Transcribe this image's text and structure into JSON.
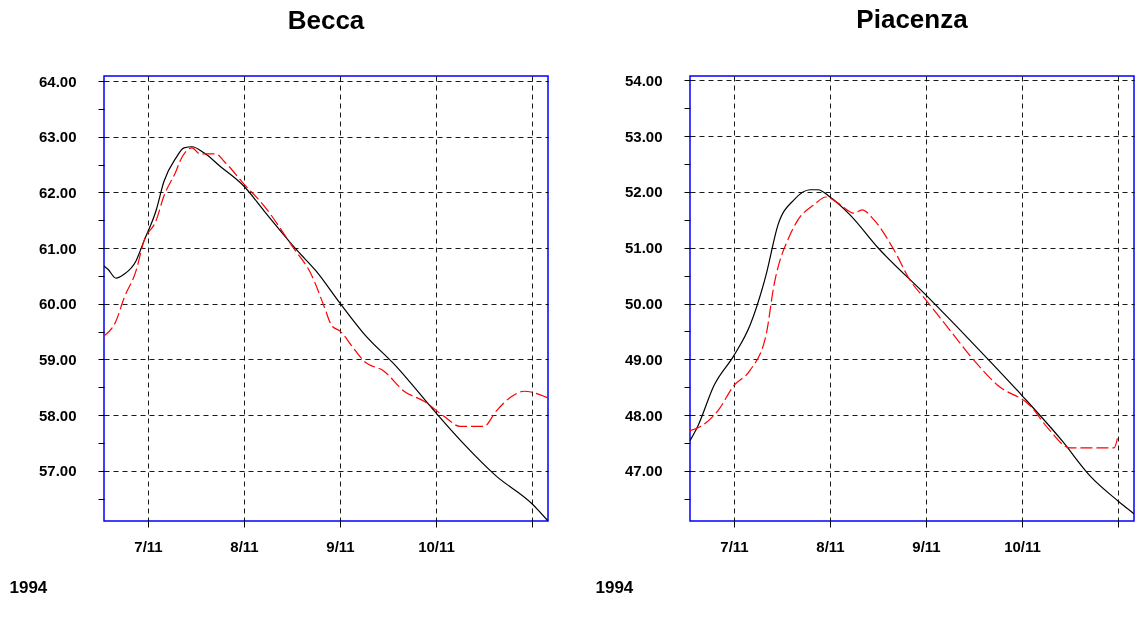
{
  "chart_data": [
    {
      "type": "line",
      "title": "Becca",
      "xlabel": "1994",
      "xlim": [
        "1994-11-06T13:00",
        "1994-11-11T04:00"
      ],
      "ylim": [
        56.1,
        64.09
      ],
      "xticks": [
        {
          "value": "1994-11-07",
          "label": "7/11"
        },
        {
          "value": "1994-11-08",
          "label": "8/11"
        },
        {
          "value": "1994-11-09",
          "label": "9/11"
        },
        {
          "value": "1994-11-10",
          "label": "10/11"
        },
        {
          "value": "1994-11-11",
          "label": null
        }
      ],
      "yticks": [
        {
          "value": 56.5,
          "label": null
        },
        {
          "value": 57,
          "label": "57.00"
        },
        {
          "value": 57.5,
          "label": null
        },
        {
          "value": 58,
          "label": "58.00"
        },
        {
          "value": 58.5,
          "label": null
        },
        {
          "value": 59,
          "label": "59.00"
        },
        {
          "value": 59.5,
          "label": null
        },
        {
          "value": 60,
          "label": "60.00"
        },
        {
          "value": 60.5,
          "label": null
        },
        {
          "value": 61,
          "label": "61.00"
        },
        {
          "value": 61.5,
          "label": null
        },
        {
          "value": 62,
          "label": "62.00"
        },
        {
          "value": 62.5,
          "label": null
        },
        {
          "value": 63,
          "label": "63.00"
        },
        {
          "value": 63.5,
          "label": null
        },
        {
          "value": 64,
          "label": "64.00"
        }
      ],
      "grid": true,
      "series": [
        {
          "color": "#000000",
          "line_style": "solid",
          "x": [
            "1994-11-06T13:00",
            "1994-11-06T14:00",
            "1994-11-06T16:00",
            "1994-11-06T18:00",
            "1994-11-06T21:00",
            "1994-11-06T23:00",
            "1994-11-07T02:00",
            "1994-11-07T04:00",
            "1994-11-07T07:00",
            "1994-11-07T09:00",
            "1994-11-07T11:00",
            "1994-11-07T14:00",
            "1994-11-07T18:00",
            "1994-11-08T00:00",
            "1994-11-08T05:00",
            "1994-11-08T13:00",
            "1994-11-08T18:00",
            "1994-11-09T00:00",
            "1994-11-09T06:00",
            "1994-11-09T14:00",
            "1994-11-10T00:00",
            "1994-11-10T07:00",
            "1994-11-10T15:00",
            "1994-11-11T00:00",
            "1994-11-11T04:00"
          ],
          "values": [
            60.68,
            60.62,
            60.46,
            60.53,
            60.77,
            61.13,
            61.67,
            62.2,
            62.62,
            62.8,
            62.82,
            62.71,
            62.47,
            62.11,
            61.67,
            60.98,
            60.59,
            60.01,
            59.46,
            58.88,
            58.04,
            57.48,
            56.91,
            56.41,
            56.1
          ]
        },
        {
          "color": "#ff0000",
          "line_style": "dashed",
          "x": [
            "1994-11-06T13:00",
            "1994-11-06T16:00",
            "1994-11-06T18:00",
            "1994-11-06T21:00",
            "1994-11-06T23:00",
            "1994-11-07T02:00",
            "1994-11-07T04:00",
            "1994-11-07T07:00",
            "1994-11-07T08:00",
            "1994-11-07T11:00",
            "1994-11-07T13:00",
            "1994-11-07T17:00",
            "1994-11-07T19:00",
            "1994-11-08T00:00",
            "1994-11-08T05:00",
            "1994-11-08T12:00",
            "1994-11-08T17:00",
            "1994-11-08T20:00",
            "1994-11-08T22:00",
            "1994-11-09T00:00",
            "1994-11-09T03:00",
            "1994-11-09T06:00",
            "1994-11-09T11:00",
            "1994-11-09T16:00",
            "1994-11-09T21:00",
            "1994-11-10T02:00",
            "1994-11-10T06:00",
            "1994-11-10T12:00",
            "1994-11-10T15:00",
            "1994-11-10T19:00",
            "1994-11-10T22:00",
            "1994-11-11T04:00"
          ],
          "values": [
            59.42,
            59.69,
            60.1,
            60.59,
            61.13,
            61.49,
            61.94,
            62.38,
            62.56,
            62.8,
            62.69,
            62.69,
            62.56,
            62.15,
            61.76,
            61.04,
            60.5,
            59.96,
            59.6,
            59.51,
            59.24,
            58.97,
            58.79,
            58.43,
            58.25,
            57.98,
            57.8,
            57.8,
            58.07,
            58.34,
            58.43,
            58.31
          ]
        }
      ]
    },
    {
      "type": "line",
      "title": "Piacenza",
      "xlabel": "1994",
      "xlim": [
        "1994-11-06T13:00",
        "1994-11-11T04:00"
      ],
      "ylim": [
        46.1,
        54.08
      ],
      "xticks": [
        {
          "value": "1994-11-07",
          "label": "7/11"
        },
        {
          "value": "1994-11-08",
          "label": "8/11"
        },
        {
          "value": "1994-11-09",
          "label": "9/11"
        },
        {
          "value": "1994-11-10",
          "label": "10/11"
        },
        {
          "value": "1994-11-11",
          "label": null
        }
      ],
      "yticks": [
        {
          "value": 46.5,
          "label": null
        },
        {
          "value": 47,
          "label": "47.00"
        },
        {
          "value": 47.5,
          "label": null
        },
        {
          "value": 48,
          "label": "48.00"
        },
        {
          "value": 48.5,
          "label": null
        },
        {
          "value": 49,
          "label": "49.00"
        },
        {
          "value": 49.5,
          "label": null
        },
        {
          "value": 50,
          "label": "50.00"
        },
        {
          "value": 50.5,
          "label": null
        },
        {
          "value": 51,
          "label": "51.00"
        },
        {
          "value": 51.5,
          "label": null
        },
        {
          "value": 52,
          "label": "52.00"
        },
        {
          "value": 52.5,
          "label": null
        },
        {
          "value": 53,
          "label": "53.00"
        },
        {
          "value": 53.5,
          "label": null
        },
        {
          "value": 54,
          "label": "54.00"
        }
      ],
      "grid": true,
      "series": [
        {
          "color": "#000000",
          "line_style": "solid",
          "x": [
            "1994-11-06T13:00",
            "1994-11-06T15:00",
            "1994-11-06T19:00",
            "1994-11-07T00:00",
            "1994-11-07T04:00",
            "1994-11-07T08:00",
            "1994-11-07T11:00",
            "1994-11-07T15:00",
            "1994-11-07T19:00",
            "1994-11-07T21:00",
            "1994-11-08T00:00",
            "1994-11-08T05:00",
            "1994-11-08T12:00",
            "1994-11-09T00:00",
            "1994-11-09T11:00",
            "1994-11-10T00:00",
            "1994-11-10T10:00",
            "1994-11-10T17:00",
            "1994-11-11T00:00",
            "1994-11-11T04:00"
          ],
          "values": [
            47.54,
            47.81,
            48.53,
            49.07,
            49.61,
            50.51,
            51.41,
            51.86,
            52.04,
            52.04,
            51.91,
            51.59,
            51.0,
            50.15,
            49.34,
            48.35,
            47.54,
            46.91,
            46.46,
            46.23
          ]
        },
        {
          "color": "#ff0000",
          "line_style": "dashed",
          "x": [
            "1994-11-06T13:00",
            "1994-11-06T16:00",
            "1994-11-06T20:00",
            "1994-11-07T00:00",
            "1994-11-07T04:00",
            "1994-11-07T08:00",
            "1994-11-07T10:00",
            "1994-11-07T14:00",
            "1994-11-07T16:00",
            "1994-11-07T20:00",
            "1994-11-07T23:00",
            "1994-11-08T02:00",
            "1994-11-08T06:00",
            "1994-11-08T08:00",
            "1994-11-08T11:00",
            "1994-11-08T16:00",
            "1994-11-08T20:00",
            "1994-11-09T00:00",
            "1994-11-09T06:00",
            "1994-11-09T12:00",
            "1994-11-09T18:00",
            "1994-11-10T02:00",
            "1994-11-10T07:00",
            "1994-11-10T12:00",
            "1994-11-10T20:00",
            "1994-11-10T23:00",
            "1994-11-11T00:00"
          ],
          "values": [
            47.72,
            47.81,
            48.08,
            48.53,
            48.8,
            49.43,
            50.33,
            51.23,
            51.5,
            51.77,
            51.91,
            51.8,
            51.62,
            51.68,
            51.5,
            50.96,
            50.42,
            50.06,
            49.52,
            48.98,
            48.53,
            48.17,
            47.72,
            47.41,
            47.41,
            47.41,
            47.63
          ]
        }
      ]
    }
  ]
}
